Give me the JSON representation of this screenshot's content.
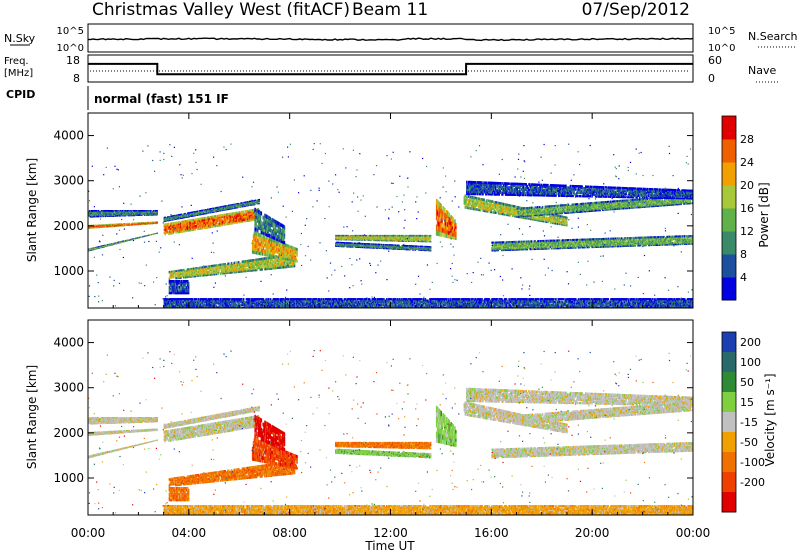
{
  "header": {
    "station": "Christmas Valley West (fitACF)",
    "beam": "Beam 11",
    "date": "07/Sep/2012"
  },
  "summary_panels": {
    "nsky_label": "N.Sky",
    "nsearch_label": "N.Search",
    "freq_label_line1": "Freq.",
    "freq_label_line2": "[MHz]",
    "nave_label": "Nave",
    "cpid_label": "CPID",
    "cpid_text": "normal (fast) 151 IF",
    "noise_left_ticks": [
      "10^5",
      "10^0"
    ],
    "noise_right_ticks": [
      "10^5",
      "10^0"
    ],
    "freq_left_ticks": [
      "18",
      "8"
    ],
    "freq_right_ticks": [
      "60",
      "0"
    ]
  },
  "colors": {
    "power_scale": [
      "#0000e0",
      "#1c4fa0",
      "#3a8a6a",
      "#5fb14a",
      "#a8c83a",
      "#f0a000",
      "#f06000",
      "#e00000"
    ],
    "velocity_scale": [
      "#1a3fb0",
      "#2a6a6a",
      "#2f8a35",
      "#7fd040",
      "#c0c0c0",
      "#f0a000",
      "#f07000",
      "#f04000",
      "#e00000"
    ]
  },
  "chart_data": [
    {
      "type": "heatmap",
      "name": "power",
      "ylabel": "Slant Range [km]",
      "xlabel": "",
      "x_ticks": [
        "00:00",
        "04:00",
        "08:00",
        "12:00",
        "16:00",
        "20:00",
        "00:00"
      ],
      "y_ticks": [
        1000,
        2000,
        3000,
        4000
      ],
      "ylim": [
        180,
        4500
      ],
      "xlim_hours": [
        0,
        24
      ],
      "colorbar_label": "Power [dB]",
      "colorbar_ticks": [
        4,
        8,
        12,
        16,
        20,
        24,
        28
      ],
      "colorbar_range": [
        0,
        32
      ]
    },
    {
      "type": "heatmap",
      "name": "velocity",
      "ylabel": "Slant Range [km]",
      "xlabel": "Time UT",
      "x_ticks": [
        "00:00",
        "04:00",
        "08:00",
        "12:00",
        "16:00",
        "20:00",
        "00:00"
      ],
      "y_ticks": [
        1000,
        2000,
        3000,
        4000
      ],
      "ylim": [
        180,
        4500
      ],
      "xlim_hours": [
        0,
        24
      ],
      "colorbar_label": "Velocity [m s⁻¹]",
      "colorbar_ticks": [
        "200",
        "100",
        "50",
        "15",
        "-15",
        "-50",
        "-100",
        "-200"
      ]
    },
    {
      "type": "line",
      "name": "frequency",
      "x_hours": [
        0,
        2.75,
        2.75,
        13.5,
        13.5,
        15.0,
        15.0,
        24
      ],
      "y_mhz": [
        14.7,
        14.7,
        10.9,
        10.9,
        10.9,
        10.9,
        14.7,
        14.7
      ]
    }
  ]
}
